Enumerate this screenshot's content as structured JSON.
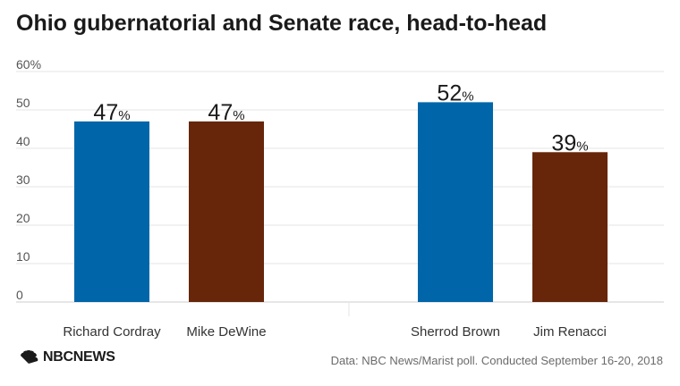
{
  "title": "Ohio gubernatorial and Senate race, head-to-head",
  "source": "Data: NBC News/Marist poll. Conducted September 16-20, 2018",
  "logo_text": "NBCNEWS",
  "colors": {
    "blue": "#0066a9",
    "brown": "#672609",
    "grid": "#e6e6e6",
    "axis_text": "#555555",
    "label_text": "#333333"
  },
  "chart_data": {
    "type": "bar",
    "categories": [
      "Richard Cordray",
      "Mike DeWine",
      "Sherrod Brown",
      "Jim Renacci"
    ],
    "values": [
      47,
      47,
      52,
      39
    ],
    "value_unit": "%",
    "bar_colors": [
      "#0066a9",
      "#672609",
      "#0066a9",
      "#672609"
    ],
    "groups": [
      {
        "members": [
          "Richard Cordray",
          "Mike DeWine"
        ]
      },
      {
        "members": [
          "Sherrod Brown",
          "Jim Renacci"
        ]
      }
    ],
    "ylim": [
      0,
      60
    ],
    "yticks": [
      0,
      10,
      20,
      30,
      40,
      50,
      60
    ],
    "ytick_labels": [
      "0",
      "10",
      "20",
      "30",
      "40",
      "50",
      "60%"
    ],
    "grid": true,
    "xlabel": "",
    "ylabel": ""
  }
}
